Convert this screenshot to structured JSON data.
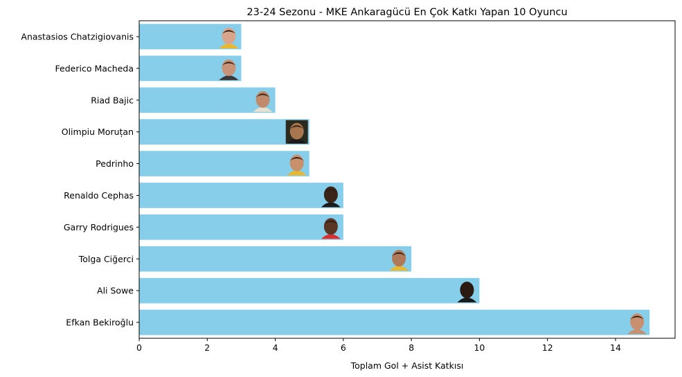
{
  "chart_data": {
    "type": "bar",
    "orientation": "horizontal",
    "title": "23-24 Sezonu - MKE Ankaragücü En Çok Katkı Yapan 10 Oyuncu",
    "xlabel": "Toplam Gol + Asist Katkısı",
    "ylabel": "",
    "xlim": [
      0,
      15.75
    ],
    "xticks": [
      0,
      2,
      4,
      6,
      8,
      10,
      12,
      14
    ],
    "grid": false,
    "bar_color": "#87ceeb",
    "categories": [
      "Anastasios Chatzigiovanis",
      "Federico Macheda",
      "Riad Bajic",
      "Olimpiu Moruțan",
      "Pedrinho",
      "Renaldo Cephas",
      "Garry Rodrigues",
      "Tolga Ciğerci",
      "Ali Sowe",
      "Efkan Bekiroğlu"
    ],
    "values": [
      3,
      3,
      4,
      5,
      5,
      6,
      6,
      8,
      10,
      15
    ],
    "player_photo_skin": [
      "#d9a58a",
      "#c99377",
      "#c08a6c",
      "#a8764e",
      "#c9906c",
      "#3a2418",
      "#5a3624",
      "#b07a58",
      "#2a1a12",
      "#c89070"
    ],
    "player_photo_shirt": [
      "#e8b830",
      "#3a3a3a",
      "#e8e0d0",
      "#1a1a1a",
      "#e8b830",
      "#1a1a1a",
      "#d83030",
      "#e8b830",
      "#1a1a1a",
      "#c89070"
    ]
  }
}
